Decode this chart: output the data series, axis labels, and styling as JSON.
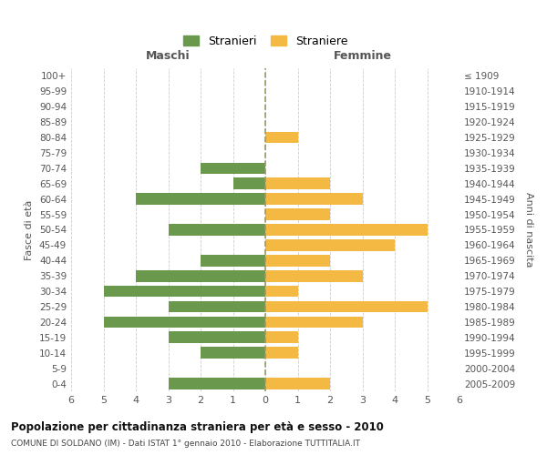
{
  "age_groups": [
    "100+",
    "95-99",
    "90-94",
    "85-89",
    "80-84",
    "75-79",
    "70-74",
    "65-69",
    "60-64",
    "55-59",
    "50-54",
    "45-49",
    "40-44",
    "35-39",
    "30-34",
    "25-29",
    "20-24",
    "15-19",
    "10-14",
    "5-9",
    "0-4"
  ],
  "birth_years": [
    "≤ 1909",
    "1910-1914",
    "1915-1919",
    "1920-1924",
    "1925-1929",
    "1930-1934",
    "1935-1939",
    "1940-1944",
    "1945-1949",
    "1950-1954",
    "1955-1959",
    "1960-1964",
    "1965-1969",
    "1970-1974",
    "1975-1979",
    "1980-1984",
    "1985-1989",
    "1990-1994",
    "1995-1999",
    "2000-2004",
    "2005-2009"
  ],
  "males": [
    0,
    0,
    0,
    0,
    0,
    0,
    2,
    1,
    4,
    0,
    3,
    0,
    2,
    4,
    5,
    3,
    5,
    3,
    2,
    0,
    3
  ],
  "females": [
    0,
    0,
    0,
    0,
    1,
    0,
    0,
    2,
    3,
    2,
    5,
    4,
    2,
    3,
    1,
    5,
    3,
    1,
    1,
    0,
    2
  ],
  "male_color": "#6a994e",
  "female_color": "#f4b942",
  "xlim": 6,
  "title": "Popolazione per cittadinanza straniera per età e sesso - 2010",
  "subtitle": "COMUNE DI SOLDANO (IM) - Dati ISTAT 1° gennaio 2010 - Elaborazione TUTTITALIA.IT",
  "legend_male": "Stranieri",
  "legend_female": "Straniere",
  "maschi_label": "Maschi",
  "femmine_label": "Femmine",
  "fasce_eta_label": "Fasce di età",
  "anni_nascita_label": "Anni di nascita",
  "bg_color": "#ffffff",
  "grid_color": "#cccccc",
  "bar_height": 0.75
}
